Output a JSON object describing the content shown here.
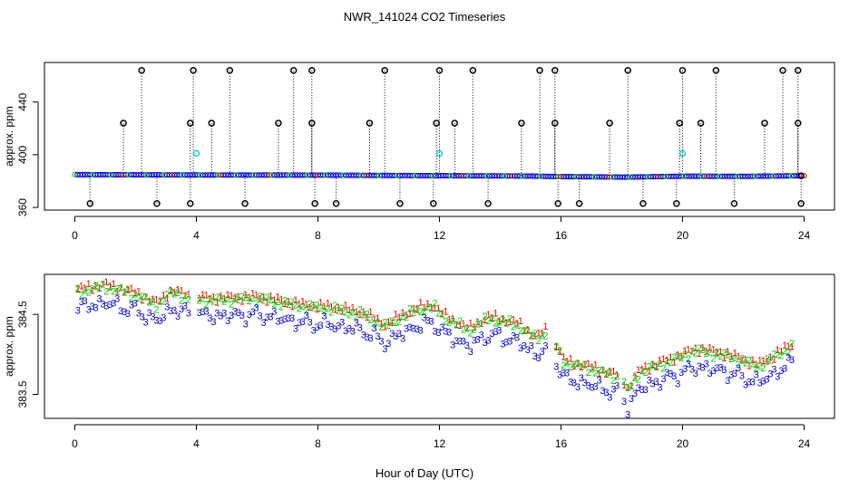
{
  "chart_data": {
    "title": "NWR_141024  CO2 Timeseries",
    "xlabel": "Hour of Day (UTC)",
    "panels": [
      {
        "id": "top",
        "type": "scatter",
        "ylabel": "approx. ppm",
        "xlim": [
          -1.0,
          25.0
        ],
        "ylim": [
          358,
          470
        ],
        "xticks": [
          0,
          4,
          8,
          12,
          16,
          20,
          24
        ],
        "yticks": [
          360,
          400,
          440
        ],
        "baseline": [
          {
            "x": 0.0,
            "y": 384.9
          },
          {
            "x": 4.0,
            "y": 384.6
          },
          {
            "x": 8.0,
            "y": 384.5
          },
          {
            "x": 12.0,
            "y": 384.1
          },
          {
            "x": 15.0,
            "y": 383.8
          },
          {
            "x": 16.0,
            "y": 383.4
          },
          {
            "x": 18.2,
            "y": 383.0
          },
          {
            "x": 20.0,
            "y": 383.7
          },
          {
            "x": 22.0,
            "y": 383.6
          },
          {
            "x": 23.8,
            "y": 384.0
          }
        ],
        "outliers_high": [
          {
            "x": 2.2,
            "y": 464
          },
          {
            "x": 3.9,
            "y": 464
          },
          {
            "x": 5.1,
            "y": 464
          },
          {
            "x": 7.2,
            "y": 464
          },
          {
            "x": 7.8,
            "y": 464
          },
          {
            "x": 10.2,
            "y": 464
          },
          {
            "x": 12.0,
            "y": 464
          },
          {
            "x": 13.1,
            "y": 464
          },
          {
            "x": 15.3,
            "y": 464
          },
          {
            "x": 15.8,
            "y": 464
          },
          {
            "x": 18.2,
            "y": 464
          },
          {
            "x": 20.0,
            "y": 464
          },
          {
            "x": 21.1,
            "y": 464
          },
          {
            "x": 23.3,
            "y": 464
          },
          {
            "x": 23.8,
            "y": 464
          }
        ],
        "outliers_mid": [
          {
            "x": 1.6,
            "y": 424
          },
          {
            "x": 3.8,
            "y": 424
          },
          {
            "x": 4.5,
            "y": 424
          },
          {
            "x": 6.7,
            "y": 424
          },
          {
            "x": 7.8,
            "y": 424
          },
          {
            "x": 9.7,
            "y": 424
          },
          {
            "x": 11.9,
            "y": 424
          },
          {
            "x": 12.5,
            "y": 424
          },
          {
            "x": 14.7,
            "y": 424
          },
          {
            "x": 15.8,
            "y": 424
          },
          {
            "x": 17.6,
            "y": 424
          },
          {
            "x": 19.9,
            "y": 424
          },
          {
            "x": 20.6,
            "y": 424
          },
          {
            "x": 22.7,
            "y": 424
          },
          {
            "x": 23.8,
            "y": 424
          }
        ],
        "outliers_low": [
          {
            "x": 0.5,
            "y": 363
          },
          {
            "x": 2.7,
            "y": 363
          },
          {
            "x": 3.8,
            "y": 363
          },
          {
            "x": 5.6,
            "y": 363
          },
          {
            "x": 7.9,
            "y": 363
          },
          {
            "x": 8.6,
            "y": 363
          },
          {
            "x": 10.7,
            "y": 363
          },
          {
            "x": 11.8,
            "y": 363
          },
          {
            "x": 13.6,
            "y": 363
          },
          {
            "x": 15.9,
            "y": 363
          },
          {
            "x": 16.6,
            "y": 363
          },
          {
            "x": 18.7,
            "y": 363
          },
          {
            "x": 19.8,
            "y": 363
          },
          {
            "x": 21.7,
            "y": 363
          },
          {
            "x": 23.9,
            "y": 363
          }
        ],
        "outliers_cyan": [
          {
            "x": 4.0,
            "y": 401
          },
          {
            "x": 12.0,
            "y": 401
          },
          {
            "x": 20.0,
            "y": 401
          }
        ]
      },
      {
        "id": "bottom",
        "type": "scatter",
        "ylabel": "approx. ppm",
        "xlim": [
          -1.0,
          25.0
        ],
        "ylim": [
          383.2,
          385.0
        ],
        "xticks": [
          0,
          4,
          8,
          12,
          16,
          20,
          24
        ],
        "yticks": [
          383.5,
          384.5
        ],
        "ytick_labels": [
          "383.5",
          "384.5"
        ],
        "series": [
          {
            "name": "1",
            "symbol": "1",
            "color": "#ff0000",
            "offset": 0.03
          },
          {
            "name": "2",
            "symbol": "2",
            "color": "#00cc00",
            "offset": 0.0
          },
          {
            "name": "3",
            "symbol": "3",
            "color": "#0000cc",
            "offset": -0.2
          }
        ],
        "baseline": [
          {
            "x": 0.0,
            "y": 384.78
          },
          {
            "x": 1.0,
            "y": 384.85
          },
          {
            "x": 2.0,
            "y": 384.75
          },
          {
            "x": 2.7,
            "y": 384.62
          },
          {
            "x": 3.2,
            "y": 384.78
          },
          {
            "x": 3.8,
            "y": 384.7
          },
          {
            "x": 4.5,
            "y": 384.68
          },
          {
            "x": 6.0,
            "y": 384.7
          },
          {
            "x": 7.5,
            "y": 384.6
          },
          {
            "x": 8.5,
            "y": 384.57
          },
          {
            "x": 9.5,
            "y": 384.5
          },
          {
            "x": 10.2,
            "y": 384.35
          },
          {
            "x": 11.2,
            "y": 384.55
          },
          {
            "x": 11.8,
            "y": 384.6
          },
          {
            "x": 12.2,
            "y": 384.45
          },
          {
            "x": 13.0,
            "y": 384.3
          },
          {
            "x": 13.6,
            "y": 384.45
          },
          {
            "x": 14.5,
            "y": 384.38
          },
          {
            "x": 15.2,
            "y": 384.2
          },
          {
            "x": 15.6,
            "y": 384.3
          },
          {
            "x": 16.1,
            "y": 383.9
          },
          {
            "x": 17.0,
            "y": 383.82
          },
          {
            "x": 18.0,
            "y": 383.7
          },
          {
            "x": 18.2,
            "y": 383.55
          },
          {
            "x": 18.6,
            "y": 383.78
          },
          {
            "x": 19.8,
            "y": 383.95
          },
          {
            "x": 20.5,
            "y": 384.05
          },
          {
            "x": 21.5,
            "y": 383.98
          },
          {
            "x": 22.5,
            "y": 383.85
          },
          {
            "x": 23.6,
            "y": 384.1
          }
        ]
      }
    ]
  }
}
